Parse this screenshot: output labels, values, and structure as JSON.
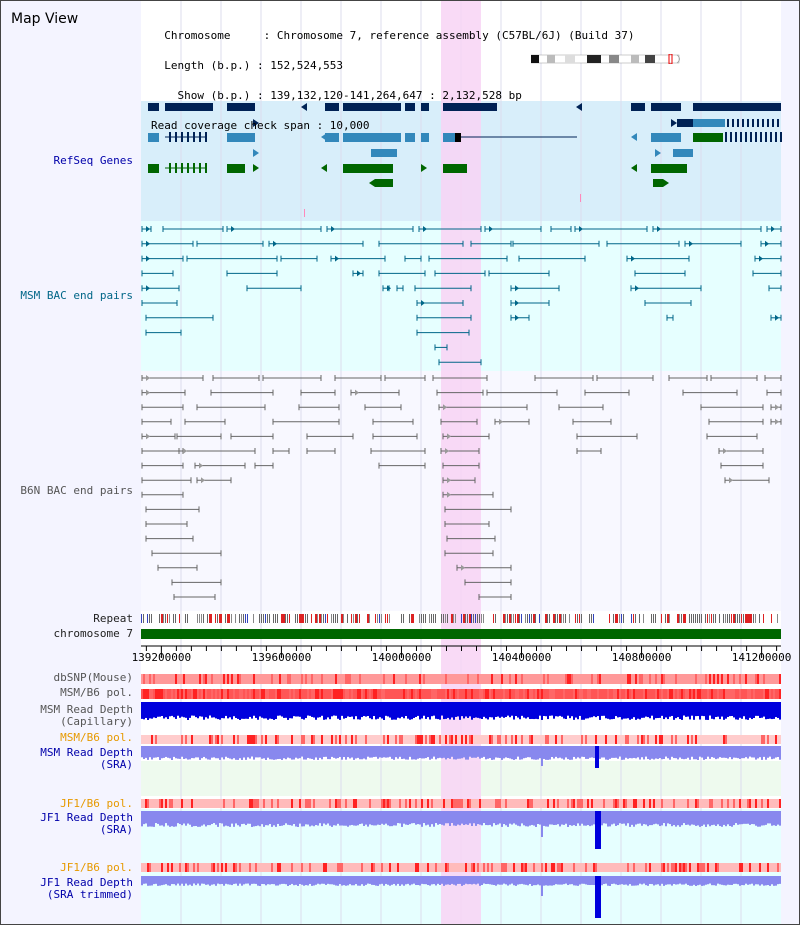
{
  "header": {
    "title": "Map View",
    "lines": [
      "  Chromosome     : Chromosome 7, reference assembly (C57BL/6J) (Build 37)",
      "  Length (b.p.) : 152,524,553",
      "    Show (b.p.) : 139,132,120-141,264,647 : 2,132,528 bp",
      "Read coverage check span : 10,000"
    ]
  },
  "tracks": {
    "refseq": "RefSeq Genes",
    "msm_bac": "MSM BAC end pairs",
    "b6n_bac": "B6N BAC end pairs",
    "repeat": "Repeat",
    "chromosome": "chromosome 7",
    "dbsnp": "dbSNP(Mouse)",
    "msm_b6_pol_1": "MSM/B6 pol.",
    "msm_read_depth_cap": "MSM Read Depth\n(Capillary)",
    "msm_b6_pol_2": "MSM/B6 pol.",
    "msm_read_depth_sra": "MSM Read Depth\n(SRA)",
    "jf1_b6_pol_1": "JF1/B6 pol.",
    "jf1_read_depth_sra": "JF1 Read Depth\n(SRA)",
    "jf1_b6_pol_2": "JF1/B6 pol.",
    "jf1_read_depth_trim": "JF1 Read Depth\n(SRA trimmed)"
  },
  "axis": {
    "ticks": [
      "139200000",
      "139600000",
      "140000000",
      "140400000",
      "140800000",
      "141200000"
    ],
    "tick_positions_bp": [
      139200000,
      139600000,
      140000000,
      140400000,
      140800000,
      141200000
    ],
    "view_start": 139132120,
    "view_end": 141264647
  },
  "colors": {
    "highlight": "#f8d4f4",
    "refseq_bg": "#d8eefa",
    "bac_bg": "#e6ffff",
    "gene_dark": "#002255",
    "gene_mid": "#3388bb",
    "gene_green": "#006600",
    "msm_line": "#006688",
    "b6n_line": "#666666",
    "chromosome": "#006600",
    "depth_blue": "#0000dd",
    "depth_light": "#8888ee",
    "pol_red": "#ff4444",
    "pol_light": "#ffaaaa"
  }
}
